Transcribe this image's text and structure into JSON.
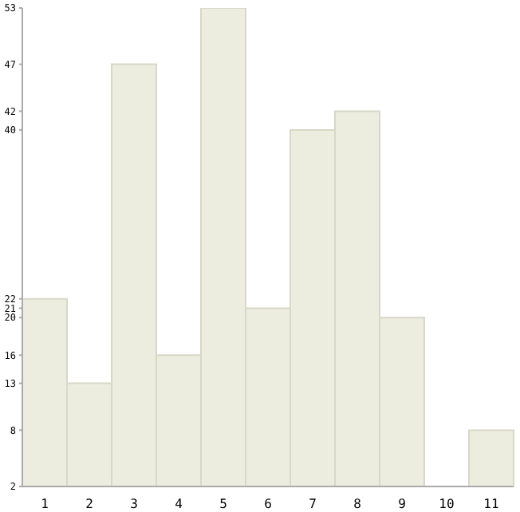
{
  "chart_data": {
    "type": "bar",
    "categories": [
      "1",
      "2",
      "3",
      "4",
      "5",
      "6",
      "7",
      "8",
      "9",
      "10",
      "11"
    ],
    "values": [
      22,
      13,
      47,
      16,
      53,
      21,
      40,
      42,
      20,
      2,
      8
    ],
    "color": "#ededdf",
    "ylim": [
      2,
      53
    ],
    "yticks": [
      2,
      8,
      13,
      16,
      20,
      21,
      22,
      40,
      42,
      47,
      53
    ],
    "grid": false
  }
}
